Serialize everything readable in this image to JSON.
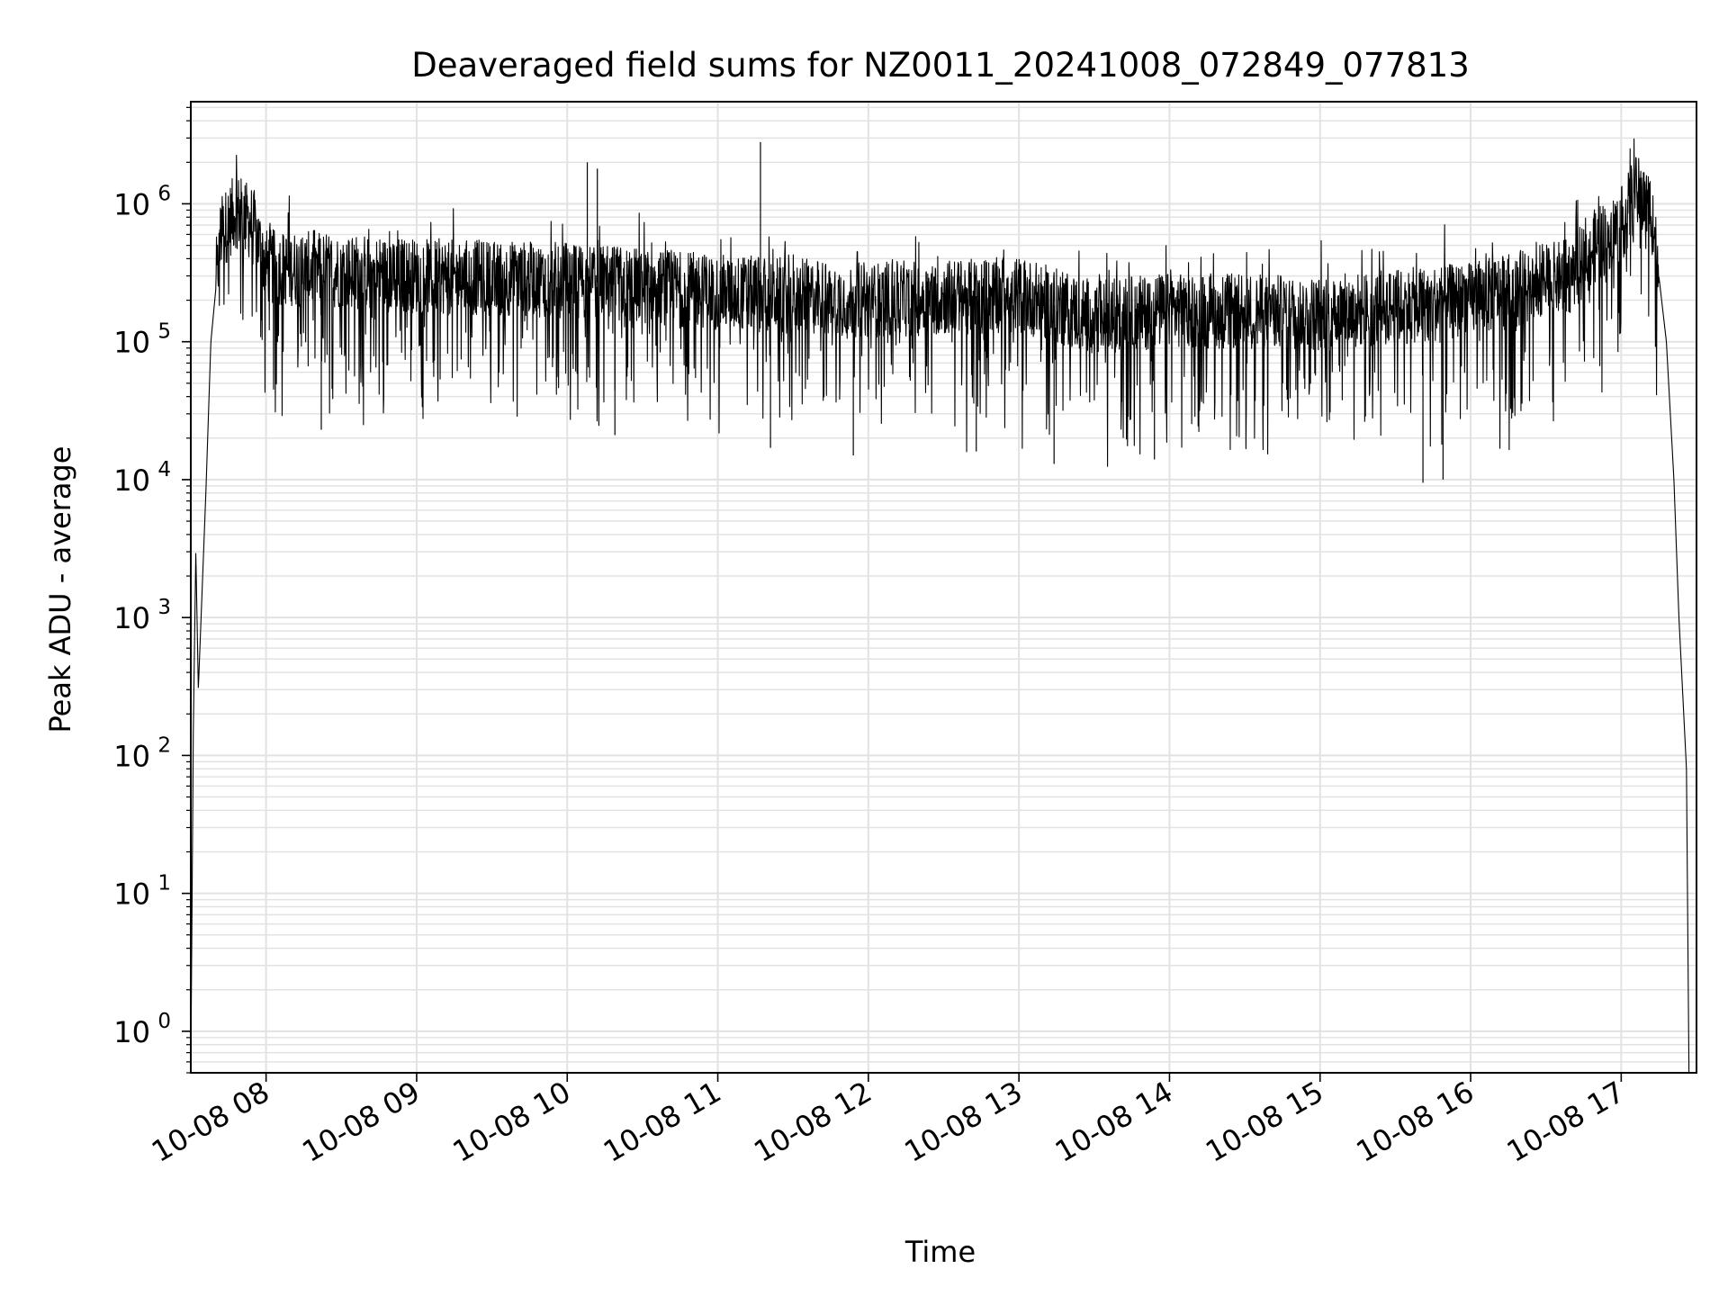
{
  "chart_data": {
    "type": "line",
    "title": "Deaveraged field sums for NZ0011_20241008_072849_077813",
    "xlabel": "Time",
    "ylabel": "Peak ADU - average",
    "y_scale": "log",
    "ylim": [
      0.5,
      5500000
    ],
    "xlim": [
      "2024-10-08 07:30",
      "2024-10-08 17:30"
    ],
    "x_ticks": [
      {
        "value": "2024-10-08 08:00",
        "label": "10-08 08"
      },
      {
        "value": "2024-10-08 09:00",
        "label": "10-08 09"
      },
      {
        "value": "2024-10-08 10:00",
        "label": "10-08 10"
      },
      {
        "value": "2024-10-08 11:00",
        "label": "10-08 11"
      },
      {
        "value": "2024-10-08 12:00",
        "label": "10-08 12"
      },
      {
        "value": "2024-10-08 13:00",
        "label": "10-08 13"
      },
      {
        "value": "2024-10-08 14:00",
        "label": "10-08 14"
      },
      {
        "value": "2024-10-08 15:00",
        "label": "10-08 15"
      },
      {
        "value": "2024-10-08 16:00",
        "label": "10-08 16"
      },
      {
        "value": "2024-10-08 17:00",
        "label": "10-08 17"
      }
    ],
    "y_ticks": [
      {
        "value": 1,
        "base": "10",
        "exp": "0"
      },
      {
        "value": 10,
        "base": "10",
        "exp": "1"
      },
      {
        "value": 100,
        "base": "10",
        "exp": "2"
      },
      {
        "value": 1000,
        "base": "10",
        "exp": "3"
      },
      {
        "value": 10000,
        "base": "10",
        "exp": "4"
      },
      {
        "value": 100000,
        "base": "10",
        "exp": "5"
      },
      {
        "value": 1000000,
        "base": "10",
        "exp": "6"
      }
    ],
    "grid": "major and minor",
    "colors": {
      "line": "#000000",
      "grid": "#e2e2e2"
    },
    "series": [
      {
        "envelope": [
          {
            "x": "2024-10-08 07:30",
            "y": 0.5
          },
          {
            "x": "2024-10-08 07:31",
            "y": 150
          },
          {
            "x": "2024-10-08 07:32",
            "y": 3000
          },
          {
            "x": "2024-10-08 07:33",
            "y": 300
          },
          {
            "x": "2024-10-08 07:36",
            "y": 8000
          },
          {
            "x": "2024-10-08 07:38",
            "y": 100000
          },
          {
            "x": "2024-10-08 07:42",
            "y": 600000
          },
          {
            "x": "2024-10-08 07:48",
            "y": 900000
          },
          {
            "x": "2024-10-08 07:55",
            "y": 700000
          },
          {
            "x": "2024-10-08 08:00",
            "y": 350000
          },
          {
            "x": "2024-10-08 09:00",
            "y": 300000
          },
          {
            "x": "2024-10-08 10:00",
            "y": 280000
          },
          {
            "x": "2024-10-08 11:00",
            "y": 230000
          },
          {
            "x": "2024-10-08 12:00",
            "y": 200000
          },
          {
            "x": "2024-10-08 13:00",
            "y": 220000
          },
          {
            "x": "2024-10-08 13:30",
            "y": 150000
          },
          {
            "x": "2024-10-08 14:00",
            "y": 170000
          },
          {
            "x": "2024-10-08 15:00",
            "y": 160000
          },
          {
            "x": "2024-10-08 16:00",
            "y": 200000
          },
          {
            "x": "2024-10-08 16:40",
            "y": 300000
          },
          {
            "x": "2024-10-08 16:50",
            "y": 500000
          },
          {
            "x": "2024-10-08 17:00",
            "y": 700000
          },
          {
            "x": "2024-10-08 17:06",
            "y": 1200000
          },
          {
            "x": "2024-10-08 17:12",
            "y": 900000
          },
          {
            "x": "2024-10-08 17:18",
            "y": 100000
          },
          {
            "x": "2024-10-08 17:21",
            "y": 10000
          },
          {
            "x": "2024-10-08 17:23",
            "y": 1000
          },
          {
            "x": "2024-10-08 17:26",
            "y": 80
          },
          {
            "x": "2024-10-08 17:27",
            "y": 0.5
          }
        ],
        "spikes": [
          {
            "x": "2024-10-08 10:08",
            "y": 2000000
          },
          {
            "x": "2024-10-08 10:12",
            "y": 1800000
          },
          {
            "x": "2024-10-08 11:17",
            "y": 2800000
          },
          {
            "x": "2024-10-08 17:04",
            "y": 1900000
          },
          {
            "x": "2024-10-08 11:21",
            "y": 17000
          },
          {
            "x": "2024-10-08 13:14",
            "y": 13000
          },
          {
            "x": "2024-10-08 13:54",
            "y": 14000
          },
          {
            "x": "2024-10-08 15:41",
            "y": 9500
          },
          {
            "x": "2024-10-08 15:49",
            "y": 10000
          },
          {
            "x": "2024-10-08 08:22",
            "y": 23000
          },
          {
            "x": "2024-10-08 10:19",
            "y": 21000
          },
          {
            "x": "2024-10-08 11:54",
            "y": 15000
          },
          {
            "x": "2024-10-08 12:43",
            "y": 16000
          }
        ]
      }
    ]
  }
}
